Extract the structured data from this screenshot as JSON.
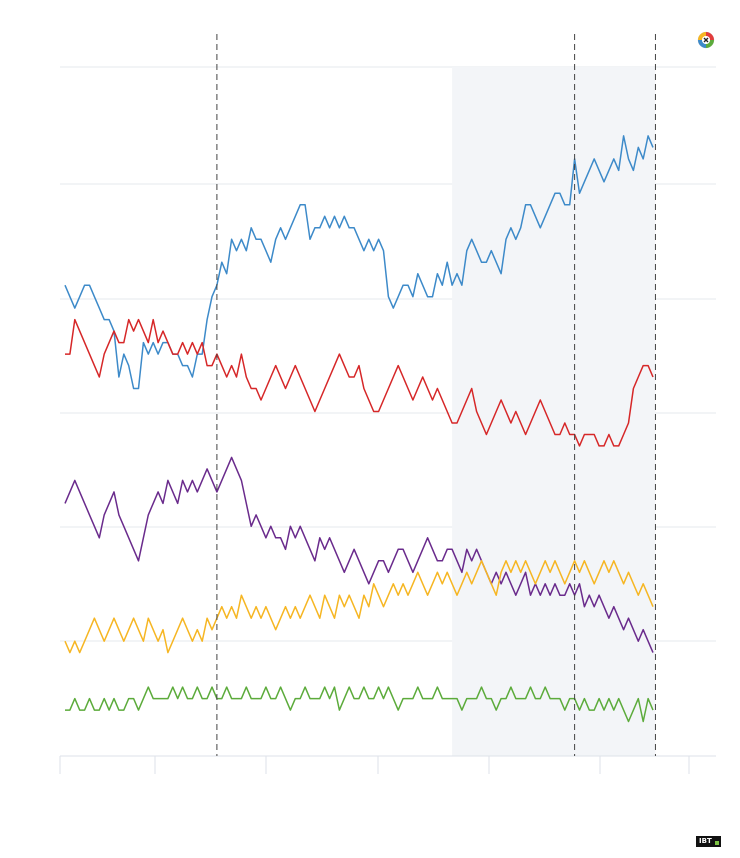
{
  "colors": {
    "blue": "#3d8ac9",
    "red": "#d62728",
    "purple": "#6a2b8c",
    "yellow": "#f6b623",
    "green": "#5cab3b",
    "gridline": "#e6e9ee",
    "shade": "#f3f5f8",
    "marker_line": "#444444"
  },
  "icons": {
    "top_right_badge": "pollster-logo-icon",
    "bottom_right_badge": "ibt-logo"
  },
  "brand": {
    "ibt_text": "IBT"
  },
  "chart_data": {
    "type": "line",
    "title": "",
    "xlabel": "",
    "ylabel": "",
    "grid": true,
    "x_ticks_count": 7,
    "x": [
      0,
      1,
      2,
      3,
      4,
      5,
      6,
      7,
      8,
      9,
      10,
      11,
      12,
      13,
      14,
      15,
      16,
      17,
      18,
      19,
      20,
      21,
      22,
      23,
      24,
      25,
      26,
      27,
      28,
      29,
      30,
      31,
      32,
      33,
      34,
      35,
      36,
      37,
      38,
      39,
      40,
      41,
      42,
      43,
      44,
      45,
      46,
      47,
      48,
      49,
      50,
      51,
      52,
      53,
      54,
      55,
      56,
      57,
      58,
      59,
      60,
      61,
      62,
      63,
      64,
      65,
      66,
      67,
      68,
      69,
      70,
      71,
      72,
      73,
      74,
      75,
      76,
      77,
      78,
      79,
      80,
      81,
      82,
      83,
      84,
      85,
      86,
      87,
      88,
      89,
      90,
      91,
      92,
      93,
      94,
      95,
      96,
      97,
      98,
      99,
      100,
      101,
      102,
      103,
      104,
      105,
      106,
      107,
      108,
      109,
      110,
      111,
      112,
      113,
      114,
      115,
      116,
      117,
      118,
      119,
      120
    ],
    "markers": [
      {
        "x": 31,
        "style": "dashed"
      },
      {
        "x": 104,
        "style": "dashed"
      },
      {
        "x": 120.5,
        "style": "dashed"
      }
    ],
    "shaded_region": [
      79,
      120.5
    ],
    "series": [
      {
        "color_key": "blue",
        "values": [
          41,
          40,
          39,
          40,
          41,
          41,
          40,
          39,
          38,
          38,
          37,
          33,
          35,
          34,
          32,
          32,
          36,
          35,
          36,
          35,
          36,
          36,
          35,
          35,
          34,
          34,
          33,
          35,
          35,
          38,
          40,
          41,
          43,
          42,
          45,
          44,
          45,
          44,
          46,
          45,
          45,
          44,
          43,
          45,
          46,
          45,
          46,
          47,
          48,
          48,
          45,
          46,
          46,
          47,
          46,
          47,
          46,
          47,
          46,
          46,
          45,
          44,
          45,
          44,
          45,
          44,
          40,
          39,
          40,
          41,
          41,
          40,
          42,
          41,
          40,
          40,
          42,
          41,
          43,
          41,
          42,
          41,
          44,
          45,
          44,
          43,
          43,
          44,
          43,
          42,
          45,
          46,
          45,
          46,
          48,
          48,
          47,
          46,
          47,
          48,
          49,
          49,
          48,
          48,
          52,
          49,
          50,
          51,
          52,
          51,
          50,
          51,
          52,
          51,
          54,
          52,
          51,
          53,
          52,
          54,
          53
        ]
      },
      {
        "color_key": "red",
        "values": [
          35,
          35,
          38,
          37,
          36,
          35,
          34,
          33,
          35,
          36,
          37,
          36,
          36,
          38,
          37,
          38,
          37,
          36,
          38,
          36,
          37,
          36,
          35,
          35,
          36,
          35,
          36,
          35,
          36,
          34,
          34,
          35,
          34,
          33,
          34,
          33,
          35,
          33,
          32,
          32,
          31,
          32,
          33,
          34,
          33,
          32,
          33,
          34,
          33,
          32,
          31,
          30,
          31,
          32,
          33,
          34,
          35,
          34,
          33,
          33,
          34,
          32,
          31,
          30,
          30,
          31,
          32,
          33,
          34,
          33,
          32,
          31,
          32,
          33,
          32,
          31,
          32,
          31,
          30,
          29,
          29,
          30,
          31,
          32,
          30,
          29,
          28,
          29,
          30,
          31,
          30,
          29,
          30,
          29,
          28,
          29,
          30,
          31,
          30,
          29,
          28,
          28,
          29,
          28,
          28,
          27,
          28,
          28,
          28,
          27,
          27,
          28,
          27,
          27,
          28,
          29,
          32,
          33,
          34,
          34,
          33
        ]
      },
      {
        "color_key": "purple",
        "values": [
          22,
          23,
          24,
          23,
          22,
          21,
          20,
          19,
          21,
          22,
          23,
          21,
          20,
          19,
          18,
          17,
          19,
          21,
          22,
          23,
          22,
          24,
          23,
          22,
          24,
          23,
          24,
          23,
          24,
          25,
          24,
          23,
          24,
          25,
          26,
          25,
          24,
          22,
          20,
          21,
          20,
          19,
          20,
          19,
          19,
          18,
          20,
          19,
          20,
          19,
          18,
          17,
          19,
          18,
          19,
          18,
          17,
          16,
          17,
          18,
          17,
          16,
          15,
          16,
          17,
          17,
          16,
          17,
          18,
          18,
          17,
          16,
          17,
          18,
          19,
          18,
          17,
          17,
          18,
          18,
          17,
          16,
          18,
          17,
          18,
          17,
          16,
          15,
          16,
          15,
          16,
          15,
          14,
          15,
          16,
          14,
          15,
          14,
          15,
          14,
          15,
          14,
          14,
          15,
          14,
          15,
          13,
          14,
          13,
          14,
          13,
          12,
          13,
          12,
          11,
          12,
          11,
          10,
          11,
          10,
          9
        ]
      },
      {
        "color_key": "yellow",
        "values": [
          10,
          9,
          10,
          9,
          10,
          11,
          12,
          11,
          10,
          11,
          12,
          11,
          10,
          11,
          12,
          11,
          10,
          12,
          11,
          10,
          11,
          9,
          10,
          11,
          12,
          11,
          10,
          11,
          10,
          12,
          11,
          12,
          13,
          12,
          13,
          12,
          14,
          13,
          12,
          13,
          12,
          13,
          12,
          11,
          12,
          13,
          12,
          13,
          12,
          13,
          14,
          13,
          12,
          14,
          13,
          12,
          14,
          13,
          14,
          13,
          12,
          14,
          13,
          15,
          14,
          13,
          14,
          15,
          14,
          15,
          14,
          15,
          16,
          15,
          14,
          15,
          16,
          15,
          16,
          15,
          14,
          15,
          16,
          15,
          16,
          17,
          16,
          15,
          14,
          16,
          17,
          16,
          17,
          16,
          17,
          16,
          15,
          16,
          17,
          16,
          17,
          16,
          15,
          16,
          17,
          16,
          17,
          16,
          15,
          16,
          17,
          16,
          17,
          16,
          15,
          16,
          15,
          14,
          15,
          14,
          13
        ]
      },
      {
        "color_key": "green",
        "values": [
          4,
          4,
          5,
          4,
          4,
          5,
          4,
          4,
          5,
          4,
          5,
          4,
          4,
          5,
          5,
          4,
          5,
          6,
          5,
          5,
          5,
          5,
          6,
          5,
          6,
          5,
          5,
          6,
          5,
          5,
          6,
          5,
          5,
          6,
          5,
          5,
          5,
          6,
          5,
          5,
          5,
          6,
          5,
          5,
          6,
          5,
          4,
          5,
          5,
          6,
          5,
          5,
          5,
          6,
          5,
          6,
          4,
          5,
          6,
          5,
          5,
          6,
          5,
          5,
          6,
          5,
          6,
          5,
          4,
          5,
          5,
          5,
          6,
          5,
          5,
          5,
          6,
          5,
          5,
          5,
          5,
          4,
          5,
          5,
          5,
          6,
          5,
          5,
          4,
          5,
          5,
          6,
          5,
          5,
          5,
          6,
          5,
          5,
          6,
          5,
          5,
          5,
          4,
          5,
          5,
          4,
          5,
          4,
          4,
          5,
          4,
          5,
          4,
          5,
          4,
          3,
          4,
          5,
          3,
          5,
          4
        ]
      }
    ]
  }
}
